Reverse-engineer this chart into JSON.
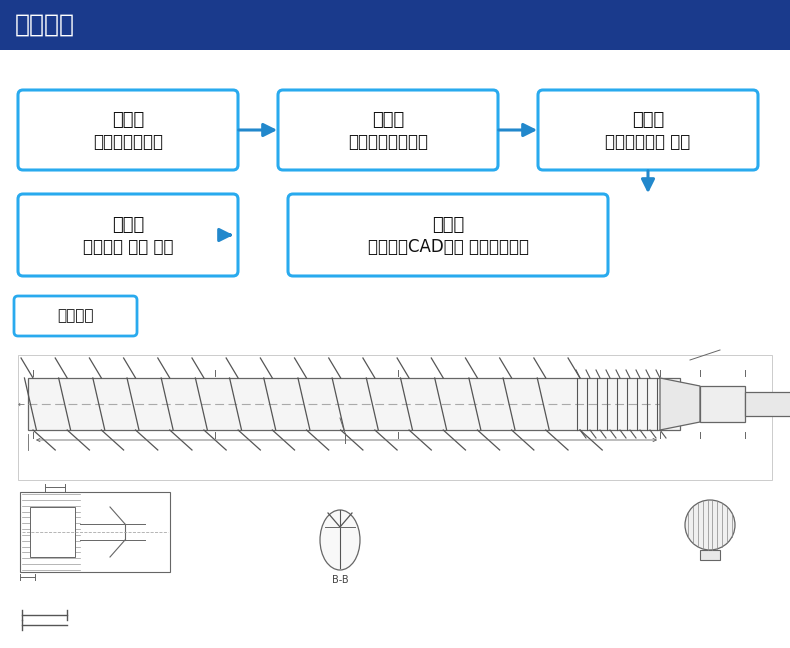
{
  "title": "定制说明",
  "title_bg_color": "#1a3a8c",
  "title_text_color": "#ffffff",
  "box_border_color": "#29aaee",
  "box_fill_color": "#ffffff",
  "arrow_color": "#2288cc",
  "bg_color": "#ffffff",
  "section_label": "图纸案列",
  "steps_row0": [
    {
      "text1": "第一步",
      "text2": "提供螺杆的直径"
    },
    {
      "text1": "第二步",
      "text2": "提供螺杆的总长度"
    },
    {
      "text1": "第三步",
      "text2": "提供牙矩尺寸 材质"
    }
  ],
  "steps_row1": [
    {
      "text1": "第五步",
      "text2": "确认无误 生产 交货"
    },
    {
      "text1": "第四步",
      "text2": "我们制作CAD图纸 客户确认图纸"
    }
  ]
}
